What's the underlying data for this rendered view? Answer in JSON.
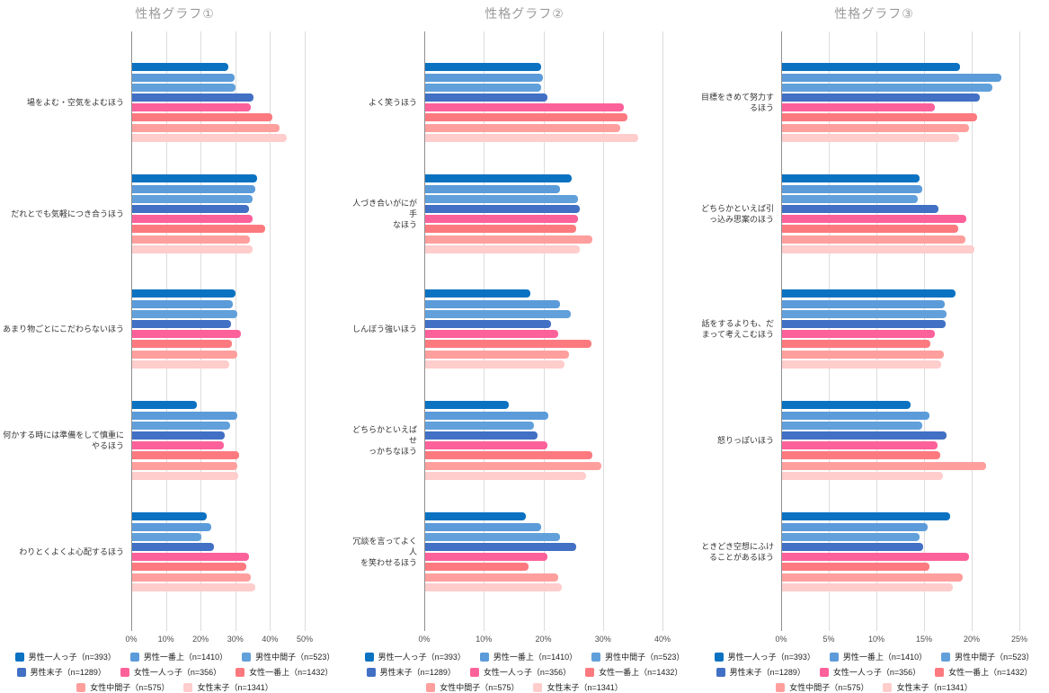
{
  "page": {
    "background": "#ffffff",
    "title_color": "#9b9b9b",
    "gridline_color": "#dcdcdc",
    "axisline_color": "#8f8f8f"
  },
  "series": [
    {
      "label": "男性一人っ子（n=393）",
      "color": "#0b72c2"
    },
    {
      "label": "男性一番上（n=1410）",
      "color": "#5c9bd9"
    },
    {
      "label": "男性中間子（n=523）",
      "color": "#61a0da"
    },
    {
      "label": "男性末子（n=1289）",
      "color": "#4170c4"
    },
    {
      "label": "女性一人っ子（n=356）",
      "color": "#fd6199"
    },
    {
      "label": "女性一番上（n=1432）",
      "color": "#fc7a7f"
    },
    {
      "label": "女性中間子（n=575）",
      "color": "#fe9f9d"
    },
    {
      "label": "女性末子（n=1341）",
      "color": "#fecdcc"
    }
  ],
  "legend_rows": [
    [
      0,
      1,
      2
    ],
    [
      3,
      4,
      5
    ],
    [
      6,
      7
    ]
  ],
  "chart_data": [
    {
      "type": "bar",
      "orientation": "horizontal",
      "title": "性格グラフ①",
      "xlabel": "",
      "ylabel": "",
      "xlim": [
        0,
        50
      ],
      "tick_labels": [
        "0%",
        "10%",
        "20%",
        "30%",
        "40%",
        "50%"
      ],
      "grid": true,
      "legend_position": "bottom",
      "categories": [
        "場をよむ・空気をよむほう",
        "だれとでも気軽につき合うほう",
        "あまり物ごとにこだわらないほう",
        "何かする時には準備をして慎重にやるほう",
        "わりとくよくよ心配するほう"
      ],
      "series_names": [
        "男性一人っ子",
        "男性一番上",
        "男性中間子",
        "男性末子",
        "女性一人っ子",
        "女性一番上",
        "女性中間子",
        "女性末子"
      ],
      "values_pct": [
        [
          27.7,
          29.6,
          29.8,
          35.1,
          34.3,
          40.3,
          42.5,
          44.5
        ],
        [
          35.9,
          35.4,
          34.7,
          33.7,
          34.6,
          38.3,
          33.9,
          34.7
        ],
        [
          29.7,
          29.1,
          30.4,
          28.4,
          31.3,
          28.7,
          30.3,
          27.9
        ],
        [
          18.7,
          30.4,
          28.2,
          26.8,
          26.4,
          30.7,
          30.3,
          30.5
        ],
        [
          21.6,
          22.7,
          19.9,
          23.5,
          33.6,
          33.0,
          34.3,
          35.5
        ]
      ]
    },
    {
      "type": "bar",
      "orientation": "horizontal",
      "title": "性格グラフ②",
      "xlabel": "",
      "ylabel": "",
      "xlim": [
        0,
        40
      ],
      "tick_labels": [
        "0%",
        "10%",
        "20%",
        "30%",
        "40%"
      ],
      "grid": true,
      "legend_position": "bottom",
      "categories": [
        "よく笑うほう",
        "人づき合いがにが手\nなほう",
        "しんぼう強いほう",
        "どちらかといえばせ\nっかちなほう",
        "冗談を言ってよく人\nを笑わせるほう"
      ],
      "series_names": [
        "男性一人っ子",
        "男性一番上",
        "男性中間子",
        "男性末子",
        "女性一人っ子",
        "女性一番上",
        "女性中間子",
        "女性末子"
      ],
      "values_pct": [
        [
          19.5,
          19.7,
          19.4,
          20.6,
          33.3,
          33.9,
          32.8,
          35.8
        ],
        [
          24.6,
          22.7,
          25.6,
          26.0,
          25.6,
          25.4,
          28.1,
          26.0
        ],
        [
          17.7,
          22.7,
          24.4,
          21.1,
          22.3,
          27.9,
          24.1,
          23.4
        ],
        [
          14.0,
          20.7,
          18.3,
          18.8,
          20.6,
          28.0,
          29.6,
          27.0
        ],
        [
          16.9,
          19.5,
          22.7,
          25.4,
          20.6,
          17.4,
          22.3,
          23.0
        ]
      ]
    },
    {
      "type": "bar",
      "orientation": "horizontal",
      "title": "性格グラフ③",
      "xlabel": "",
      "ylabel": "",
      "xlim": [
        0,
        25
      ],
      "tick_labels": [
        "0%",
        "5%",
        "10%",
        "15%",
        "20%",
        "25%"
      ],
      "grid": true,
      "legend_position": "bottom",
      "categories": [
        "目標をきめて努力す\nるほう",
        "どちらかといえば引\nっ込み思案のほう",
        "話をするよりも、だ\nまって考えこむほう",
        "怒りっぽいほう",
        "ときどき空想にふけ\nることがあるほう"
      ],
      "series_names": [
        "男性一人っ子",
        "男性一番上",
        "男性中間子",
        "男性末子",
        "女性一人っ子",
        "女性一番上",
        "女性中間子",
        "女性末子"
      ],
      "values_pct": [
        [
          18.7,
          23.0,
          22.1,
          20.8,
          16.0,
          20.5,
          19.6,
          18.6
        ],
        [
          14.4,
          14.7,
          14.2,
          16.4,
          19.3,
          18.5,
          19.2,
          20.2
        ],
        [
          18.2,
          17.1,
          17.3,
          17.2,
          16.0,
          15.6,
          17.0,
          16.7
        ],
        [
          13.5,
          15.5,
          14.7,
          17.3,
          16.3,
          16.6,
          21.4,
          16.9
        ],
        [
          17.6,
          15.3,
          14.4,
          14.8,
          19.6,
          15.5,
          19.0,
          17.9
        ]
      ]
    }
  ]
}
